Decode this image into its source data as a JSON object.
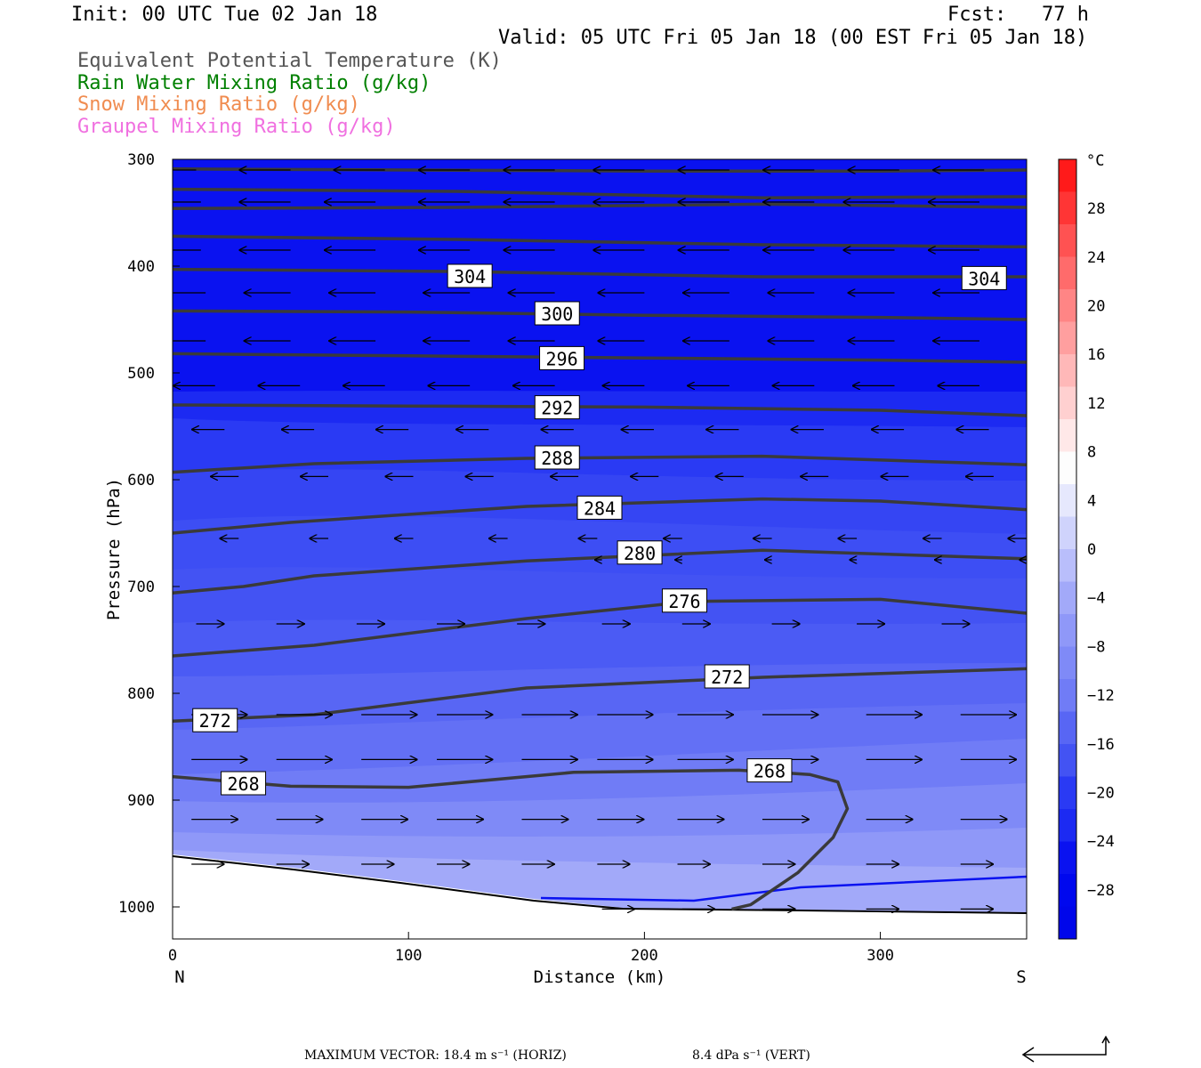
{
  "header": {
    "init": "Init: 00 UTC Tue 02 Jan 18",
    "fcst": "Fcst:   77 h",
    "valid": "Valid: 05 UTC Fri 05 Jan 18 (00 EST Fri 05 Jan 18)"
  },
  "legend": [
    {
      "text": "Equivalent Potential Temperature (K)",
      "color": "#555555"
    },
    {
      "text": "Rain Water Mixing Ratio (g/kg)",
      "color": "#008000"
    },
    {
      "text": "Snow Mixing Ratio (g/kg)",
      "color": "#f08c50"
    },
    {
      "text": "Graupel Mixing Ratio (g/kg)",
      "color": "#f070e0"
    }
  ],
  "chart_data": {
    "type": "cross-section contour",
    "xlabel": "Distance (km)",
    "ylabel": "Pressure (hPa)",
    "x_ticks": [
      0,
      100,
      200,
      300
    ],
    "y_ticks": [
      300,
      400,
      500,
      600,
      700,
      800,
      900,
      1000
    ],
    "xlim": [
      0,
      362
    ],
    "ylim": [
      300,
      1030
    ],
    "y_reversed": true,
    "end_labels": {
      "left": "N",
      "right": "S"
    },
    "colorbar": {
      "unit": "°C",
      "labels": [
        "28",
        "24",
        "20",
        "16",
        "12",
        "8",
        "4",
        "0",
        "−4",
        "−8",
        "−12",
        "−16",
        "−20",
        "−24",
        "−28"
      ],
      "levels": [
        28,
        24,
        20,
        16,
        12,
        8,
        4,
        0,
        -4,
        -8,
        -12,
        -16,
        -20,
        -24,
        -28
      ]
    },
    "theta_e_contours": [
      {
        "value": "304",
        "labels_at": [
          [
            126,
            410
          ],
          [
            344,
            412
          ]
        ],
        "lines": [
          [
            [
              0,
              309
            ],
            [
              100,
              310
            ],
            [
              200,
              311
            ],
            [
              300,
              311
            ],
            [
              362,
              310
            ]
          ],
          [
            [
              0,
              328
            ],
            [
              120,
              330
            ],
            [
              250,
              336
            ],
            [
              362,
              335
            ]
          ],
          [
            [
              0,
              346
            ],
            [
              120,
              345
            ],
            [
              250,
              342
            ],
            [
              362,
              345
            ]
          ],
          [
            [
              0,
              372
            ],
            [
              120,
              375
            ],
            [
              250,
              380
            ],
            [
              362,
              382
            ]
          ],
          [
            [
              0,
              403
            ],
            [
              120,
              405
            ],
            [
              250,
              410
            ],
            [
              362,
              410
            ]
          ]
        ]
      },
      {
        "value": "300",
        "labels_at": [
          [
            163,
            445
          ]
        ],
        "lines": [
          [
            [
              0,
              442
            ],
            [
              100,
              443
            ],
            [
              200,
              446
            ],
            [
              300,
              448
            ],
            [
              362,
              450
            ]
          ]
        ]
      },
      {
        "value": "296",
        "labels_at": [
          [
            165,
            487
          ]
        ],
        "lines": [
          [
            [
              0,
              482
            ],
            [
              100,
              484
            ],
            [
              200,
              486
            ],
            [
              300,
              488
            ],
            [
              362,
              490
            ]
          ]
        ]
      },
      {
        "value": "292",
        "labels_at": [
          [
            163,
            533
          ]
        ],
        "lines": [
          [
            [
              0,
              530
            ],
            [
              100,
              531
            ],
            [
              200,
              532
            ],
            [
              300,
              535
            ],
            [
              362,
              540
            ]
          ]
        ]
      },
      {
        "value": "288",
        "labels_at": [
          [
            163,
            580
          ]
        ],
        "lines": [
          [
            [
              0,
              593
            ],
            [
              60,
              585
            ],
            [
              150,
              580
            ],
            [
              250,
              578
            ],
            [
              362,
              586
            ]
          ]
        ]
      },
      {
        "value": "284",
        "labels_at": [
          [
            181,
            627
          ]
        ],
        "lines": [
          [
            [
              0,
              650
            ],
            [
              50,
              640
            ],
            [
              150,
              625
            ],
            [
              250,
              618
            ],
            [
              300,
              620
            ],
            [
              362,
              628
            ]
          ]
        ]
      },
      {
        "value": "280",
        "labels_at": [
          [
            198,
            669
          ]
        ],
        "lines": [
          [
            [
              0,
              706
            ],
            [
              30,
              700
            ],
            [
              60,
              690
            ],
            [
              150,
              676
            ],
            [
              250,
              666
            ],
            [
              362,
              674
            ]
          ]
        ]
      },
      {
        "value": "276",
        "labels_at": [
          [
            217,
            714
          ]
        ],
        "lines": [
          [
            [
              0,
              765
            ],
            [
              60,
              755
            ],
            [
              150,
              730
            ],
            [
              220,
              714
            ],
            [
              300,
              712
            ],
            [
              362,
              725
            ]
          ]
        ]
      },
      {
        "value": "272",
        "labels_at": [
          [
            235,
            785
          ],
          [
            18,
            826
          ]
        ],
        "lines": [
          [
            [
              0,
              826
            ],
            [
              60,
              820
            ],
            [
              150,
              795
            ],
            [
              250,
              785
            ],
            [
              362,
              777
            ]
          ]
        ]
      },
      {
        "value": "268",
        "labels_at": [
          [
            30,
            885
          ],
          [
            253,
            873
          ]
        ],
        "lines": [
          [
            [
              0,
              878
            ],
            [
              50,
              887
            ],
            [
              100,
              888
            ],
            [
              170,
              874
            ],
            [
              240,
              872
            ],
            [
              270,
              876
            ],
            [
              282,
              883
            ],
            [
              286,
              908
            ],
            [
              280,
              935
            ],
            [
              265,
              968
            ],
            [
              245,
              998
            ],
            [
              237,
              1002
            ]
          ]
        ]
      }
    ],
    "wind_arrows": [
      {
        "row": 310,
        "x": [
          10,
          50,
          90,
          126,
          162,
          200,
          236,
          272,
          308,
          344
        ],
        "dx": -1,
        "len": 22
      },
      {
        "row": 340,
        "x": [
          12,
          50,
          86,
          126,
          162,
          200,
          236,
          272,
          306,
          342
        ],
        "dx": -1,
        "len": 22
      },
      {
        "row": 385,
        "x": [
          12,
          50,
          86,
          126,
          162,
          200,
          236,
          272,
          306,
          342
        ],
        "dx": -1,
        "len": 22
      },
      {
        "row": 425,
        "x": [
          14,
          50,
          86,
          126,
          162,
          200,
          236,
          272,
          306,
          342
        ],
        "dx": -1,
        "len": 20
      },
      {
        "row": 470,
        "x": [
          14,
          50,
          86,
          126,
          162,
          200,
          236,
          272,
          306,
          342
        ],
        "dx": -1,
        "len": 20
      },
      {
        "row": 512,
        "x": [
          18,
          54,
          90,
          126,
          162,
          200,
          236,
          272,
          306,
          342
        ],
        "dx": -1,
        "len": 18
      },
      {
        "row": 553,
        "x": [
          22,
          60,
          100,
          134,
          170,
          204,
          240,
          276,
          310,
          346
        ],
        "dx": -1,
        "len": 14
      },
      {
        "row": 597,
        "x": [
          28,
          66,
          102,
          136,
          172,
          206,
          242,
          278,
          312,
          348
        ],
        "dx": -1,
        "len": 12
      },
      {
        "row": 655,
        "x": [
          28,
          66,
          102,
          142,
          180,
          216,
          254,
          290,
          326,
          362
        ],
        "dx": -1,
        "len": 8
      },
      {
        "row": 675,
        "x": [
          182,
          216,
          254,
          290,
          326,
          362
        ],
        "dx": -1,
        "len": 3
      },
      {
        "row": 735,
        "x": [
          10,
          44,
          78,
          112,
          146,
          182,
          216,
          254,
          290,
          326
        ],
        "dx": 1,
        "len": 12
      },
      {
        "row": 820,
        "x": [
          8,
          44,
          80,
          112,
          148,
          180,
          214,
          250,
          294,
          334
        ],
        "dx": 1,
        "len": 24
      },
      {
        "row": 862,
        "x": [
          8,
          44,
          80,
          112,
          148,
          180,
          214,
          250,
          294,
          334
        ],
        "dx": 1,
        "len": 24
      },
      {
        "row": 918,
        "x": [
          8,
          44,
          80,
          112,
          148,
          180,
          214,
          250,
          294,
          334
        ],
        "dx": 1,
        "len": 20
      },
      {
        "row": 960,
        "x": [
          8,
          44,
          80,
          112,
          148,
          180,
          214,
          250,
          294,
          334
        ],
        "dx": 1,
        "len": 14
      },
      {
        "row": 1002,
        "x": [
          182,
          216,
          250,
          294,
          334
        ],
        "dx": 1,
        "len": 14
      }
    ]
  },
  "footer": {
    "max_vector": "MAXIMUM VECTOR:  18.4 m s⁻¹ (HORIZ)",
    "vert": "8.4 dPa s⁻¹ (VERT)"
  }
}
